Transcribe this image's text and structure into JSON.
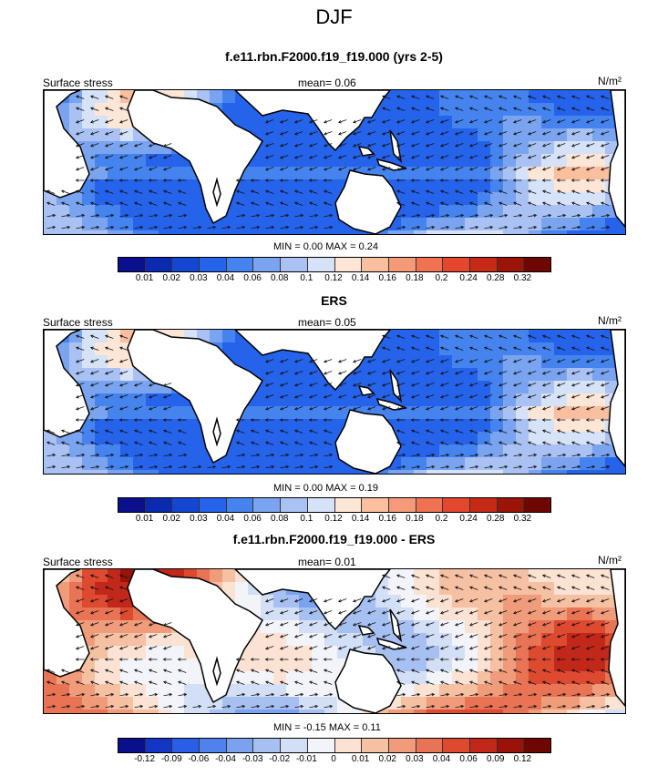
{
  "title": "DJF",
  "colors": {
    "positive_scale": [
      "#0a0f8c",
      "#0a2ab0",
      "#1446d2",
      "#2563eb",
      "#4584ef",
      "#7aa4f0",
      "#a9c2f3",
      "#d6e2f7",
      "#fde6d6",
      "#f9bf9f",
      "#f59a78",
      "#ef7252",
      "#e4472d",
      "#c62a17",
      "#9c1408",
      "#6e0602"
    ],
    "diverging_scale": [
      "#0a0f8c",
      "#1436c4",
      "#2a5ee6",
      "#4f82ec",
      "#7aa2ef",
      "#a7c0f2",
      "#d2dff6",
      "#f2f4fa",
      "#fbe2d2",
      "#f6c0a2",
      "#f09c7a",
      "#e87355",
      "#dd4a30",
      "#c2281a",
      "#9a1208",
      "#6e0602"
    ]
  },
  "panels": [
    {
      "title": "f.e11.rbn.F2000.f19_f19.000 (yrs 2-5)",
      "left_label": "Surface stress",
      "mean_label": "mean=",
      "mean_value": "0.06",
      "units": "N/m²",
      "min_label": "MIN =",
      "min_value": "0.00",
      "max_label": "MAX =",
      "max_value": "0.24",
      "colorbar_ticks": [
        "0.01",
        "0.02",
        "0.03",
        "0.04",
        "0.06",
        "0.08",
        "0.1",
        "0.12",
        "0.14",
        "0.16",
        "0.18",
        "0.2",
        "0.24",
        "0.28",
        "0.32"
      ],
      "field_type": "positive"
    },
    {
      "title": "ERS",
      "left_label": "Surface stress",
      "mean_label": "mean=",
      "mean_value": "0.05",
      "units": "N/m²",
      "min_label": "MIN =",
      "min_value": "0.00",
      "max_label": "MAX =",
      "max_value": "0.19",
      "colorbar_ticks": [
        "0.01",
        "0.02",
        "0.03",
        "0.04",
        "0.06",
        "0.08",
        "0.1",
        "0.12",
        "0.14",
        "0.16",
        "0.18",
        "0.2",
        "0.24",
        "0.28",
        "0.32"
      ],
      "field_type": "positive"
    },
    {
      "title": "f.e11.rbn.F2000.f19_f19.000 - ERS",
      "left_label": "Surface stress",
      "mean_label": "mean=",
      "mean_value": "0.01",
      "units": "N/m²",
      "min_label": "MIN =",
      "min_value": "-0.15",
      "max_label": "MAX =",
      "max_value": "0.11",
      "colorbar_ticks": [
        "-0.12",
        "-0.09",
        "-0.06",
        "-0.04",
        "-0.03",
        "-0.02",
        "-0.01",
        "0",
        "0.01",
        "0.02",
        "0.03",
        "0.04",
        "0.06",
        "0.09",
        "0.12"
      ],
      "field_type": "diverging"
    }
  ]
}
